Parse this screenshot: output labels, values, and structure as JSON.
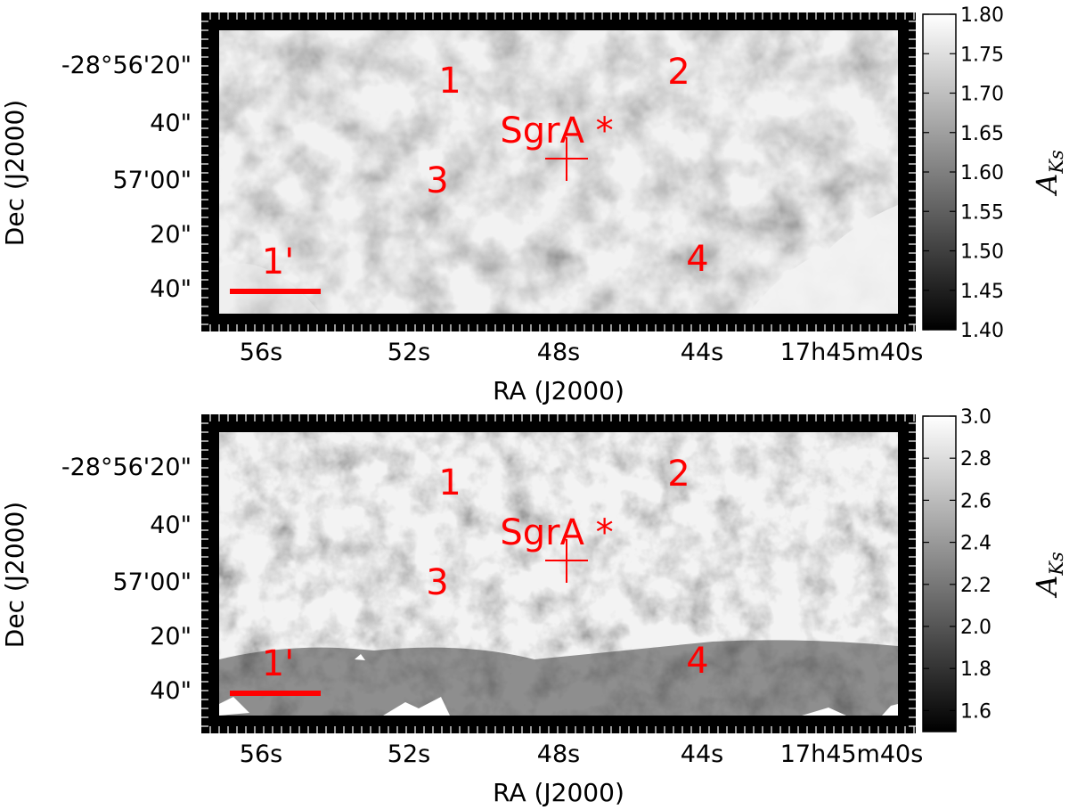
{
  "chart_data": [
    {
      "type": "heatmap",
      "panel": "top",
      "xlabel": "RA (J2000)",
      "ylabel": "Dec (J2000)",
      "x_ticks": [
        "56s",
        "52s",
        "48s",
        "44s",
        "17h45m40s"
      ],
      "y_ticks": [
        "-28°56'20\"",
        "40\"",
        "57'00\"",
        "20\"",
        "40\""
      ],
      "colorbar": {
        "label_main": "A",
        "label_sub": "Ks",
        "range": [
          1.4,
          1.8
        ],
        "ticks": [
          "1.80",
          "1.75",
          "1.70",
          "1.65",
          "1.60",
          "1.55",
          "1.50",
          "1.45",
          "1.40"
        ]
      },
      "annotations": [
        "1",
        "2",
        "3",
        "4",
        "SgrA *",
        "1'"
      ],
      "colors": {
        "annotation": "#ff0000",
        "frame": "#000000"
      }
    },
    {
      "type": "heatmap",
      "panel": "bottom",
      "xlabel": "RA (J2000)",
      "ylabel": "Dec (J2000)",
      "x_ticks": [
        "56s",
        "52s",
        "48s",
        "44s",
        "17h45m40s"
      ],
      "y_ticks": [
        "-28°56'20\"",
        "40\"",
        "57'00\"",
        "20\"",
        "40\""
      ],
      "colorbar": {
        "label_main": "A",
        "label_sub": "Ks",
        "range": [
          1.5,
          3.0
        ],
        "ticks": [
          "3.0",
          "2.8",
          "2.6",
          "2.4",
          "2.2",
          "2.0",
          "1.8",
          "1.6"
        ]
      },
      "annotations": [
        "1",
        "2",
        "3",
        "4",
        "SgrA *",
        "1'"
      ],
      "colors": {
        "annotation": "#ff0000",
        "frame": "#000000"
      }
    }
  ]
}
